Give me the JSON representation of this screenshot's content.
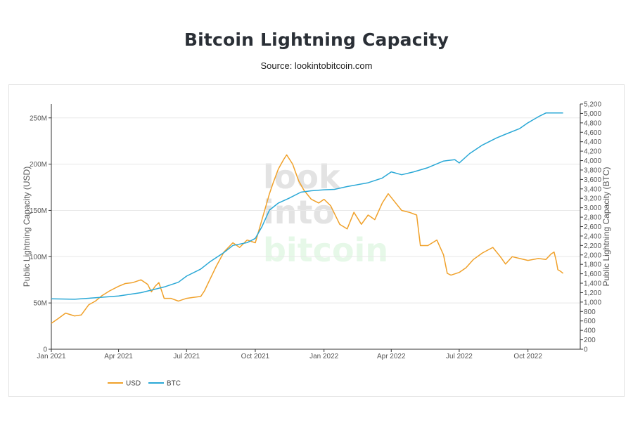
{
  "page": {
    "title": "Bitcoin Lightning Capacity",
    "subtitle": "Source: lookintobitcoin.com"
  },
  "watermark": [
    "look",
    "into",
    "bitcoin"
  ],
  "colors": {
    "usd": "#f0a12a",
    "btc": "#2aa8d6",
    "grid": "#e8e8e8",
    "axis": "#333333",
    "watermark_gray": "#e3e3e3",
    "watermark_green": "#e6f8e8"
  },
  "chart_data": {
    "type": "line",
    "title": "Bitcoin Lightning Capacity",
    "xlabel": "",
    "ylabel": "Public Lightning Capacity (USD)",
    "y2label": "Public Lightning Capacity (BTC)",
    "x_ticks": [
      "Jan 2021",
      "Apr 2021",
      "Jul 2021",
      "Oct 2021",
      "Jan 2022",
      "Apr 2022",
      "Jul 2022",
      "Oct 2022"
    ],
    "x_range": [
      "2021-01-01",
      "2022-12-10"
    ],
    "ylim": [
      0,
      265000000
    ],
    "y_ticks": [
      {
        "v": 0,
        "label": "0"
      },
      {
        "v": 50000000,
        "label": "50M"
      },
      {
        "v": 100000000,
        "label": "100M"
      },
      {
        "v": 150000000,
        "label": "150M"
      },
      {
        "v": 200000000,
        "label": "200M"
      },
      {
        "v": 250000000,
        "label": "250M"
      }
    ],
    "y2lim": [
      0,
      5200
    ],
    "y2_ticks": [
      "0",
      "200",
      "400",
      "600",
      "800",
      "1,000",
      "1,200",
      "1,400",
      "1,600",
      "1,800",
      "2,000",
      "2,200",
      "2,400",
      "2,600",
      "2,800",
      "3,000",
      "3,200",
      "3,400",
      "3,600",
      "3,800",
      "4,000",
      "4,200",
      "4,400",
      "4,600",
      "4,800",
      "5,000",
      "5,200"
    ],
    "grid": true,
    "legend_position": "bottom-left",
    "series": [
      {
        "name": "USD",
        "axis": "left",
        "color": "#f0a12a",
        "points": [
          [
            "2021-01-01",
            28000000
          ],
          [
            "2021-01-10",
            33000000
          ],
          [
            "2021-01-20",
            39000000
          ],
          [
            "2021-02-01",
            36000000
          ],
          [
            "2021-02-10",
            37000000
          ],
          [
            "2021-02-20",
            48000000
          ],
          [
            "2021-03-01",
            52000000
          ],
          [
            "2021-03-10",
            58000000
          ],
          [
            "2021-03-20",
            63000000
          ],
          [
            "2021-04-01",
            68000000
          ],
          [
            "2021-04-10",
            71000000
          ],
          [
            "2021-04-20",
            72000000
          ],
          [
            "2021-05-01",
            75000000
          ],
          [
            "2021-05-10",
            70000000
          ],
          [
            "2021-05-15",
            62000000
          ],
          [
            "2021-05-20",
            68000000
          ],
          [
            "2021-05-25",
            72000000
          ],
          [
            "2021-06-01",
            55000000
          ],
          [
            "2021-06-10",
            55000000
          ],
          [
            "2021-06-20",
            52000000
          ],
          [
            "2021-07-01",
            55000000
          ],
          [
            "2021-07-10",
            56000000
          ],
          [
            "2021-07-20",
            57000000
          ],
          [
            "2021-07-25",
            63000000
          ],
          [
            "2021-08-01",
            75000000
          ],
          [
            "2021-08-10",
            90000000
          ],
          [
            "2021-08-20",
            105000000
          ],
          [
            "2021-09-01",
            115000000
          ],
          [
            "2021-09-10",
            110000000
          ],
          [
            "2021-09-20",
            118000000
          ],
          [
            "2021-10-01",
            115000000
          ],
          [
            "2021-10-10",
            140000000
          ],
          [
            "2021-10-20",
            168000000
          ],
          [
            "2021-10-25",
            180000000
          ],
          [
            "2021-11-01",
            195000000
          ],
          [
            "2021-11-08",
            205000000
          ],
          [
            "2021-11-12",
            210000000
          ],
          [
            "2021-11-20",
            200000000
          ],
          [
            "2021-11-28",
            182000000
          ],
          [
            "2021-12-05",
            172000000
          ],
          [
            "2021-12-15",
            162000000
          ],
          [
            "2021-12-25",
            158000000
          ],
          [
            "2022-01-01",
            162000000
          ],
          [
            "2022-01-10",
            155000000
          ],
          [
            "2022-01-22",
            135000000
          ],
          [
            "2022-02-01",
            130000000
          ],
          [
            "2022-02-10",
            148000000
          ],
          [
            "2022-02-20",
            135000000
          ],
          [
            "2022-03-01",
            145000000
          ],
          [
            "2022-03-10",
            140000000
          ],
          [
            "2022-03-20",
            158000000
          ],
          [
            "2022-03-28",
            168000000
          ],
          [
            "2022-04-05",
            160000000
          ],
          [
            "2022-04-15",
            150000000
          ],
          [
            "2022-04-25",
            148000000
          ],
          [
            "2022-05-05",
            145000000
          ],
          [
            "2022-05-10",
            112000000
          ],
          [
            "2022-05-20",
            112000000
          ],
          [
            "2022-06-01",
            118000000
          ],
          [
            "2022-06-10",
            102000000
          ],
          [
            "2022-06-15",
            82000000
          ],
          [
            "2022-06-20",
            80000000
          ],
          [
            "2022-07-01",
            83000000
          ],
          [
            "2022-07-10",
            88000000
          ],
          [
            "2022-07-20",
            97000000
          ],
          [
            "2022-08-01",
            104000000
          ],
          [
            "2022-08-15",
            110000000
          ],
          [
            "2022-08-25",
            100000000
          ],
          [
            "2022-09-01",
            92000000
          ],
          [
            "2022-09-10",
            100000000
          ],
          [
            "2022-09-20",
            98000000
          ],
          [
            "2022-10-01",
            96000000
          ],
          [
            "2022-10-15",
            98000000
          ],
          [
            "2022-10-25",
            97000000
          ],
          [
            "2022-11-01",
            103000000
          ],
          [
            "2022-11-05",
            105000000
          ],
          [
            "2022-11-08",
            95000000
          ],
          [
            "2022-11-10",
            86000000
          ],
          [
            "2022-11-14",
            84000000
          ],
          [
            "2022-11-17",
            82000000
          ]
        ]
      },
      {
        "name": "BTC",
        "axis": "right",
        "color": "#2aa8d6",
        "points": [
          [
            "2021-01-01",
            1070
          ],
          [
            "2021-02-01",
            1060
          ],
          [
            "2021-03-01",
            1090
          ],
          [
            "2021-04-01",
            1130
          ],
          [
            "2021-05-01",
            1200
          ],
          [
            "2021-06-01",
            1320
          ],
          [
            "2021-06-20",
            1420
          ],
          [
            "2021-07-01",
            1550
          ],
          [
            "2021-07-20",
            1700
          ],
          [
            "2021-08-01",
            1850
          ],
          [
            "2021-08-20",
            2050
          ],
          [
            "2021-09-01",
            2200
          ],
          [
            "2021-09-20",
            2260
          ],
          [
            "2021-10-01",
            2350
          ],
          [
            "2021-10-10",
            2600
          ],
          [
            "2021-10-20",
            2950
          ],
          [
            "2021-11-01",
            3100
          ],
          [
            "2021-11-15",
            3200
          ],
          [
            "2021-12-01",
            3330
          ],
          [
            "2021-12-15",
            3360
          ],
          [
            "2022-01-01",
            3380
          ],
          [
            "2022-01-15",
            3390
          ],
          [
            "2022-02-01",
            3450
          ],
          [
            "2022-03-01",
            3530
          ],
          [
            "2022-03-20",
            3630
          ],
          [
            "2022-04-01",
            3760
          ],
          [
            "2022-04-15",
            3700
          ],
          [
            "2022-05-01",
            3760
          ],
          [
            "2022-05-20",
            3850
          ],
          [
            "2022-06-10",
            3990
          ],
          [
            "2022-06-25",
            4020
          ],
          [
            "2022-07-01",
            3950
          ],
          [
            "2022-07-15",
            4150
          ],
          [
            "2022-08-01",
            4330
          ],
          [
            "2022-08-20",
            4480
          ],
          [
            "2022-09-01",
            4560
          ],
          [
            "2022-09-20",
            4680
          ],
          [
            "2022-10-01",
            4800
          ],
          [
            "2022-10-15",
            4930
          ],
          [
            "2022-10-25",
            5010
          ],
          [
            "2022-11-05",
            5010
          ],
          [
            "2022-11-17",
            5010
          ]
        ]
      }
    ]
  }
}
